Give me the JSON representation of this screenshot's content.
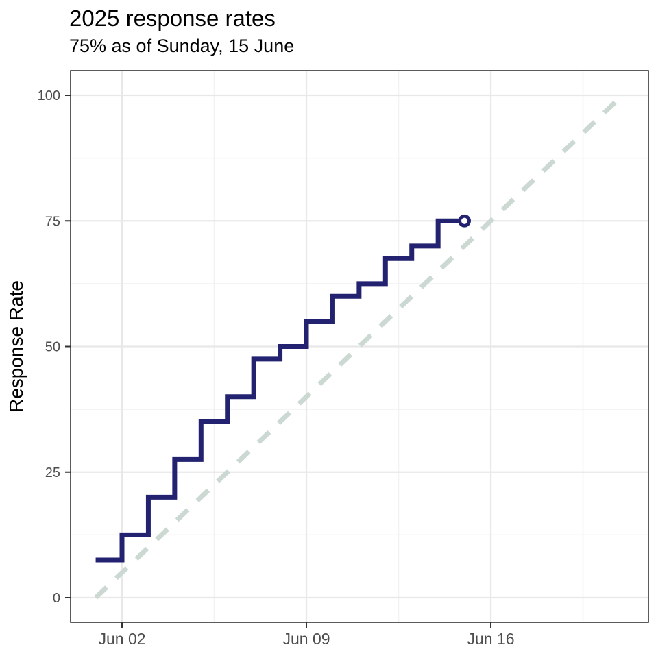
{
  "header": {
    "title": "2025 response rates",
    "subtitle": "75% as of Sunday, 15 June"
  },
  "chart_data": {
    "type": "step-line",
    "title": "2025 response rates",
    "subtitle": "75% as of Sunday, 15 June",
    "xlabel": "",
    "ylabel": "Response Rate",
    "ylim": [
      0,
      100
    ],
    "y_ticks": [
      0,
      25,
      50,
      75,
      100
    ],
    "y_minor_ticks": [
      12.5,
      37.5,
      62.5,
      87.5
    ],
    "x_tick_labels": [
      "Jun 02",
      "Jun 09",
      "Jun 16"
    ],
    "x_tick_days": [
      2,
      9,
      16
    ],
    "x_minor_days": [
      5.5,
      12.5,
      19.5
    ],
    "grid": "on",
    "legend": "none",
    "series": [
      {
        "name": "cumulative-response-rate-2025",
        "dates": [
          "Jun 01",
          "Jun 02",
          "Jun 03",
          "Jun 04",
          "Jun 05",
          "Jun 06",
          "Jun 07",
          "Jun 08",
          "Jun 09",
          "Jun 10",
          "Jun 11",
          "Jun 12",
          "Jun 13",
          "Jun 14",
          "Jun 15"
        ],
        "values": [
          7.5,
          12.5,
          20,
          27.5,
          35,
          40,
          47.5,
          50,
          55,
          60,
          62.5,
          67.5,
          70,
          75,
          75
        ]
      }
    ],
    "reference_line": {
      "name": "target-pace-line",
      "style": "dashed",
      "from": {
        "date": "Jun 01",
        "value": 0
      },
      "to": {
        "date": "Jun 21",
        "value": 100
      }
    },
    "endpoint_marker": {
      "date": "Jun 15",
      "value": 75,
      "shape": "open-circle"
    },
    "colors": {
      "line": "#222270",
      "reference": "#ccd9d3",
      "grid_major": "#e8e8e8",
      "grid_minor": "#f2f2f2",
      "axis": "#333333",
      "tick_label": "#4d4d4d",
      "marker_fill": "#ffffff",
      "title": "#000000"
    }
  }
}
